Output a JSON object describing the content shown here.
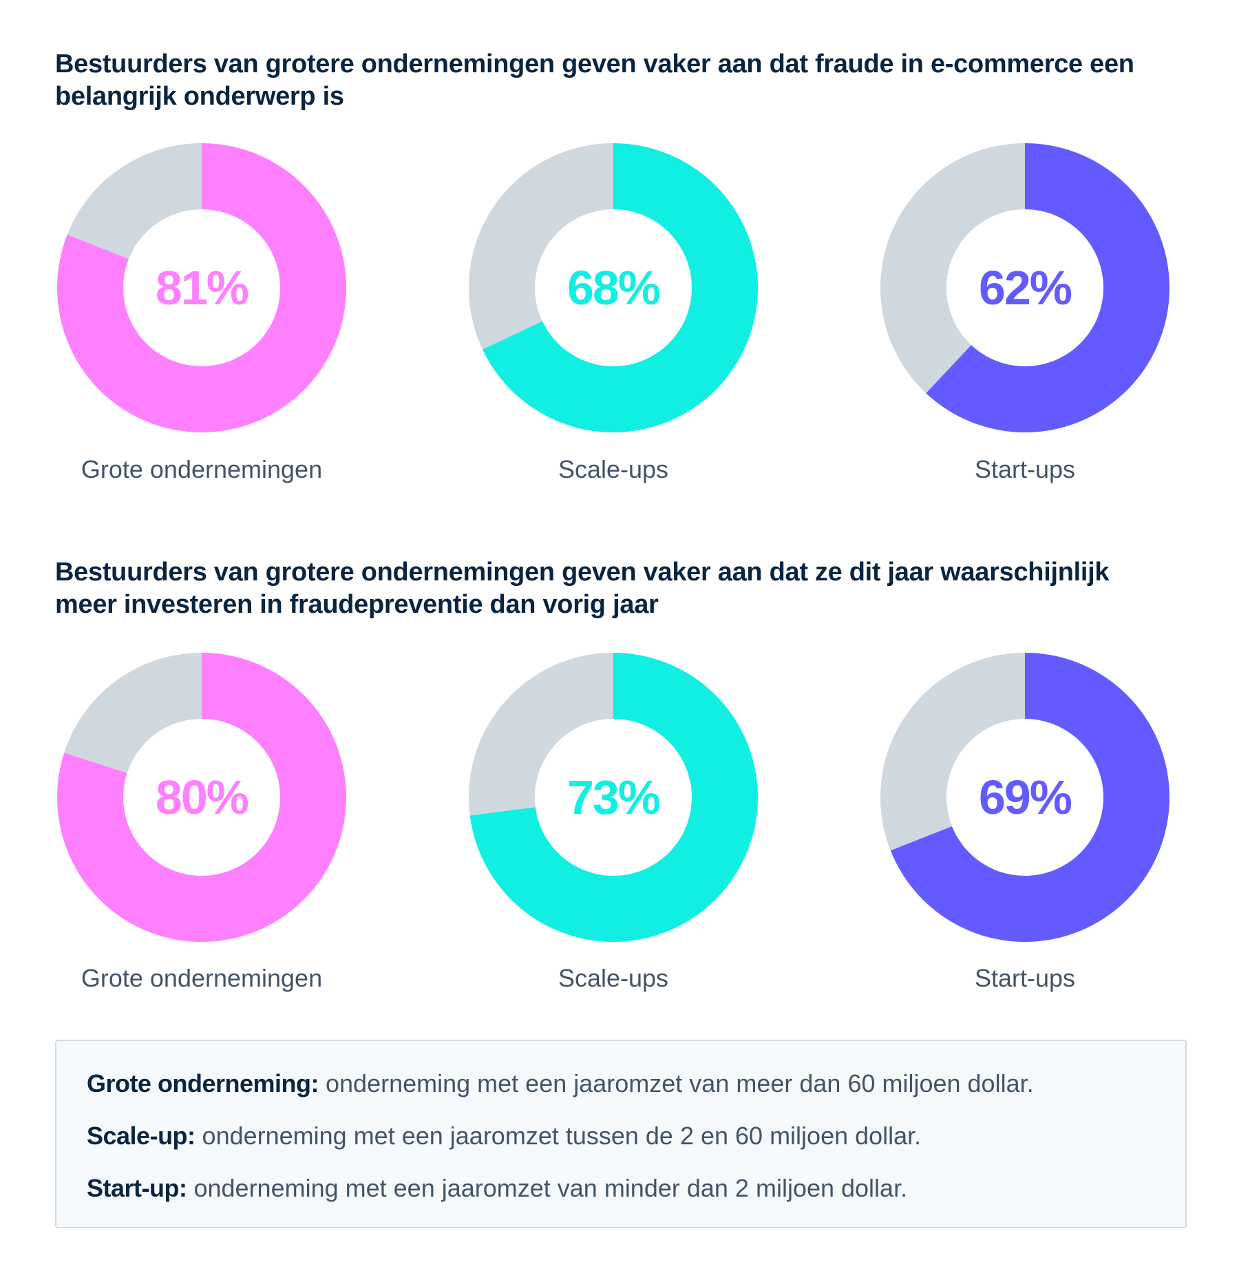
{
  "chart_data": [
    {
      "type": "pie",
      "title": "Bestuurders van grotere ondernemingen geven vaker aan dat fraude in e-commerce een belangrijk onderwerp is",
      "categories": [
        "Grote ondernemingen",
        "Scale-ups",
        "Start-ups"
      ],
      "values": [
        81,
        68,
        62
      ],
      "value_labels": [
        "81%",
        "68%",
        "62%"
      ],
      "colors": [
        "#ff80ff",
        "#11efe3",
        "#635bff"
      ],
      "remainder_color": "#cfd7df"
    },
    {
      "type": "pie",
      "title": "Bestuurders van grotere ondernemingen geven vaker aan dat ze dit jaar waarschijnlijk meer investeren in fraudepreventie dan vorig jaar",
      "categories": [
        "Grote ondernemingen",
        "Scale-ups",
        "Start-ups"
      ],
      "values": [
        80,
        73,
        69
      ],
      "value_labels": [
        "80%",
        "73%",
        "69%"
      ],
      "colors": [
        "#ff80ff",
        "#11efe3",
        "#635bff"
      ],
      "remainder_color": "#cfd7df"
    }
  ],
  "legend": {
    "items": [
      {
        "term": "Grote onderneming:",
        "definition": " onderneming met een jaaromzet van meer dan 60 miljoen dollar."
      },
      {
        "term": "Scale-up:",
        "definition": " onderneming met een jaaromzet tussen de 2 en 60 miljoen dollar."
      },
      {
        "term": "Start-up:",
        "definition": " onderneming met een jaaromzet van minder dan 2 miljoen dollar."
      }
    ]
  }
}
